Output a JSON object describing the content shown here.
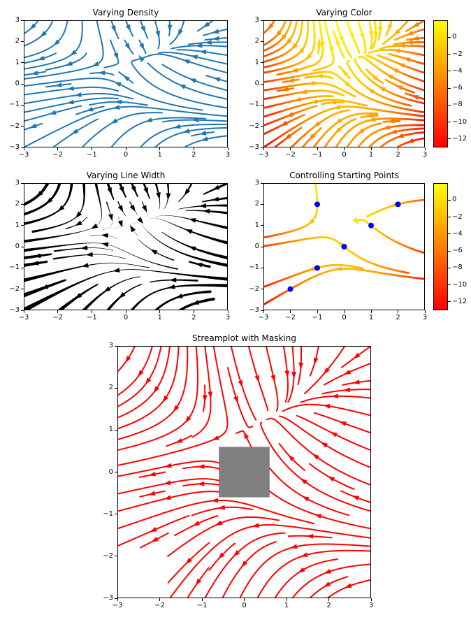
{
  "chart_data": {
    "type": "streamplot",
    "field": {
      "u_expr": "-1 - x*x + y",
      "v_expr": "1 + x - y*y",
      "domain": {
        "x0": -3,
        "x1": 3,
        "y0": -3,
        "y1": 3
      },
      "grid_points": 100
    },
    "xlim": [
      -3,
      3
    ],
    "ylim": [
      -3,
      3
    ],
    "colormap": {
      "name": "autumn",
      "vmin": -13,
      "vmax": 2,
      "top_color": "#ffff00",
      "bottom_color": "#ff0000"
    },
    "speed_max": 17.03,
    "colorbar_ticks": [
      0,
      -2,
      -4,
      -6,
      -8,
      -10,
      -12
    ],
    "subplots": [
      {
        "title": "Varying Density",
        "stream_color": "#1f77b4",
        "linewidth_pt": 1.5,
        "density": [
          0.5,
          1
        ],
        "xticks": [
          -3,
          -2,
          -1,
          0,
          1,
          2,
          3
        ],
        "yticks": [
          -3,
          -2,
          -1,
          0,
          1,
          2,
          3
        ],
        "has_colorbar": false
      },
      {
        "title": "Varying Color",
        "color_by": "u",
        "linewidth_pt": 2,
        "density": [
          1,
          1
        ],
        "xticks": [
          -3,
          -2,
          -1,
          0,
          1,
          2,
          3
        ],
        "yticks": [
          -3,
          -2,
          -1,
          0,
          1,
          2,
          3
        ],
        "has_colorbar": true
      },
      {
        "title": "Varying Line Width",
        "stream_color": "#000000",
        "linewidth_by": "speed",
        "linewidth_scale_pt": 5,
        "density": [
          0.6,
          0.6
        ],
        "xticks": [
          -3,
          -2,
          -1,
          0,
          1,
          2,
          3
        ],
        "yticks": [
          -3,
          -2,
          -1,
          0,
          1,
          2,
          3
        ],
        "has_colorbar": false
      },
      {
        "title": "Controlling Starting Points",
        "color_by": "u",
        "linewidth_pt": 2,
        "density": [
          1,
          1
        ],
        "start_points": [
          [
            -2,
            -2
          ],
          [
            -1,
            -1
          ],
          [
            0,
            0
          ],
          [
            1,
            1
          ],
          [
            2,
            2
          ],
          [
            -1,
            2
          ]
        ],
        "marker": {
          "color": "#0000ff",
          "radius_px": 4
        },
        "xticks": [
          -3,
          -2,
          -1,
          0,
          1,
          2,
          3
        ],
        "yticks": [
          -3,
          -2,
          -1,
          0,
          1,
          2,
          3
        ],
        "has_colorbar": true
      },
      {
        "title": "Streamplot with Masking",
        "stream_color": "#ff0000",
        "linewidth_pt": 1.5,
        "density": [
          1,
          1
        ],
        "mask_rect": {
          "x0": -0.6,
          "x1": 0.6,
          "y0": -0.6,
          "y1": 0.6,
          "fill": "#808080"
        },
        "nan_rect": {
          "x0": -3,
          "x1": -1.8,
          "y0": -3,
          "y1": -1.8
        },
        "xticks": [
          -3,
          -2,
          -1,
          0,
          1,
          2,
          3
        ],
        "yticks": [
          -3,
          -2,
          -1,
          0,
          1,
          2,
          3
        ],
        "has_colorbar": false
      }
    ]
  }
}
